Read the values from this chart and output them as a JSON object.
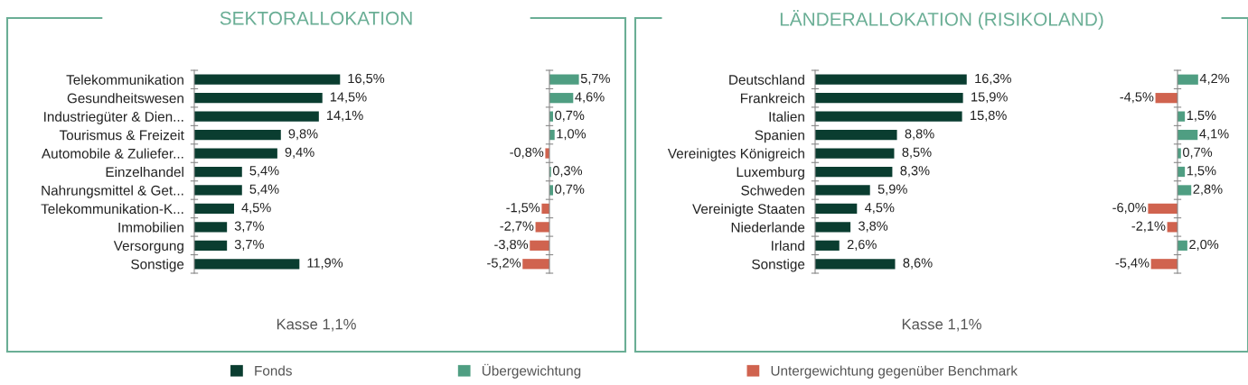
{
  "chart_data": [
    {
      "type": "bar",
      "orientation": "horizontal",
      "title": "SEKTORALLOKATION",
      "legend": "bottom",
      "annotations": [
        "Kasse 1,1%"
      ],
      "categories": [
        "Telekommunikation",
        "Gesundheitswesen",
        "Industriegüter & Dien...",
        "Tourismus & Freizeit",
        "Automobile & Zuliefer...",
        "Einzelhandel",
        "Nahrungsmittel & Get...",
        "Telekommunikation-K...",
        "Immobilien",
        "Versorgung",
        "Sonstige"
      ],
      "series": [
        {
          "name": "Fonds",
          "color": "#0a3d30",
          "values": [
            16.5,
            14.5,
            14.1,
            9.8,
            9.4,
            5.4,
            5.4,
            4.5,
            3.7,
            3.7,
            11.9
          ],
          "value_labels": [
            "16,5%",
            "14,5%",
            "14,1%",
            "9,8%",
            "9,4%",
            "5,4%",
            "5,4%",
            "4,5%",
            "3,7%",
            "3,7%",
            "11,9%"
          ]
        }
      ]
    },
    {
      "type": "bar",
      "orientation": "horizontal",
      "legend": "bottom",
      "categories": [
        null,
        null,
        null,
        null,
        null,
        null,
        null,
        null,
        null,
        null,
        null
      ],
      "series": [
        {
          "name": "Übergewichtung",
          "color": "#4f9e82",
          "values": [
            5.7,
            4.6,
            0.7,
            1.0,
            null,
            0.3,
            0.7,
            null,
            null,
            null,
            null
          ],
          "value_labels": [
            "5,7%",
            "4,6%",
            "0,7%",
            "1,0%",
            null,
            "0,3%",
            "0,7%",
            null,
            null,
            null,
            null
          ]
        },
        {
          "name": "Untergewichtung gegenüber Benchmark",
          "color": "#d0634f",
          "values": [
            null,
            null,
            null,
            null,
            -0.8,
            null,
            null,
            -1.5,
            -2.7,
            -3.8,
            -5.2
          ],
          "value_labels": [
            null,
            null,
            null,
            null,
            "-0,8%",
            null,
            null,
            "-1,5%",
            "-2,7%",
            "-3,8%",
            "-5,2%"
          ]
        }
      ]
    },
    {
      "type": "bar",
      "orientation": "horizontal",
      "title": "LÄNDERALLOKATION (RISIKOLAND)",
      "annotations": [
        "Kasse 1,1%"
      ],
      "categories": [
        "Deutschland",
        "Frankreich",
        "Italien",
        "Spanien",
        "Vereinigtes Königreich",
        "Luxemburg",
        "Schweden",
        "Vereinigte Staaten",
        "Niederlande",
        "Irland",
        "Sonstige"
      ],
      "series": [
        {
          "color": "#0a3d30",
          "values": [
            16.3,
            15.9,
            15.8,
            8.8,
            8.5,
            8.3,
            5.9,
            4.5,
            3.8,
            2.6,
            8.6
          ],
          "value_labels": [
            "16,3%",
            "15,9%",
            "15,8%",
            "8,8%",
            "8,5%",
            "8,3%",
            "5,9%",
            "4,5%",
            "3,8%",
            "2,6%",
            "8,6%"
          ]
        }
      ]
    },
    {
      "type": "bar",
      "orientation": "horizontal",
      "categories": [
        null,
        null,
        null,
        null,
        null,
        null,
        null,
        null,
        null,
        null,
        null
      ],
      "series": [
        {
          "color": "#4f9e82",
          "values": [
            4.2,
            null,
            1.5,
            4.1,
            0.7,
            1.5,
            2.8,
            null,
            null,
            2.0,
            null
          ],
          "value_labels": [
            "4,2%",
            null,
            "1,5%",
            "4,1%",
            "0,7%",
            "1,5%",
            "2,8%",
            null,
            null,
            "2,0%",
            null
          ]
        },
        {
          "color": "#d0634f",
          "values": [
            null,
            -4.5,
            null,
            null,
            null,
            null,
            null,
            -6.0,
            -2.1,
            null,
            -5.4
          ],
          "value_labels": [
            null,
            "-4,5%",
            null,
            null,
            null,
            null,
            null,
            "-6,0%",
            "-2,1%",
            null,
            "-5,4%"
          ]
        }
      ]
    }
  ]
}
